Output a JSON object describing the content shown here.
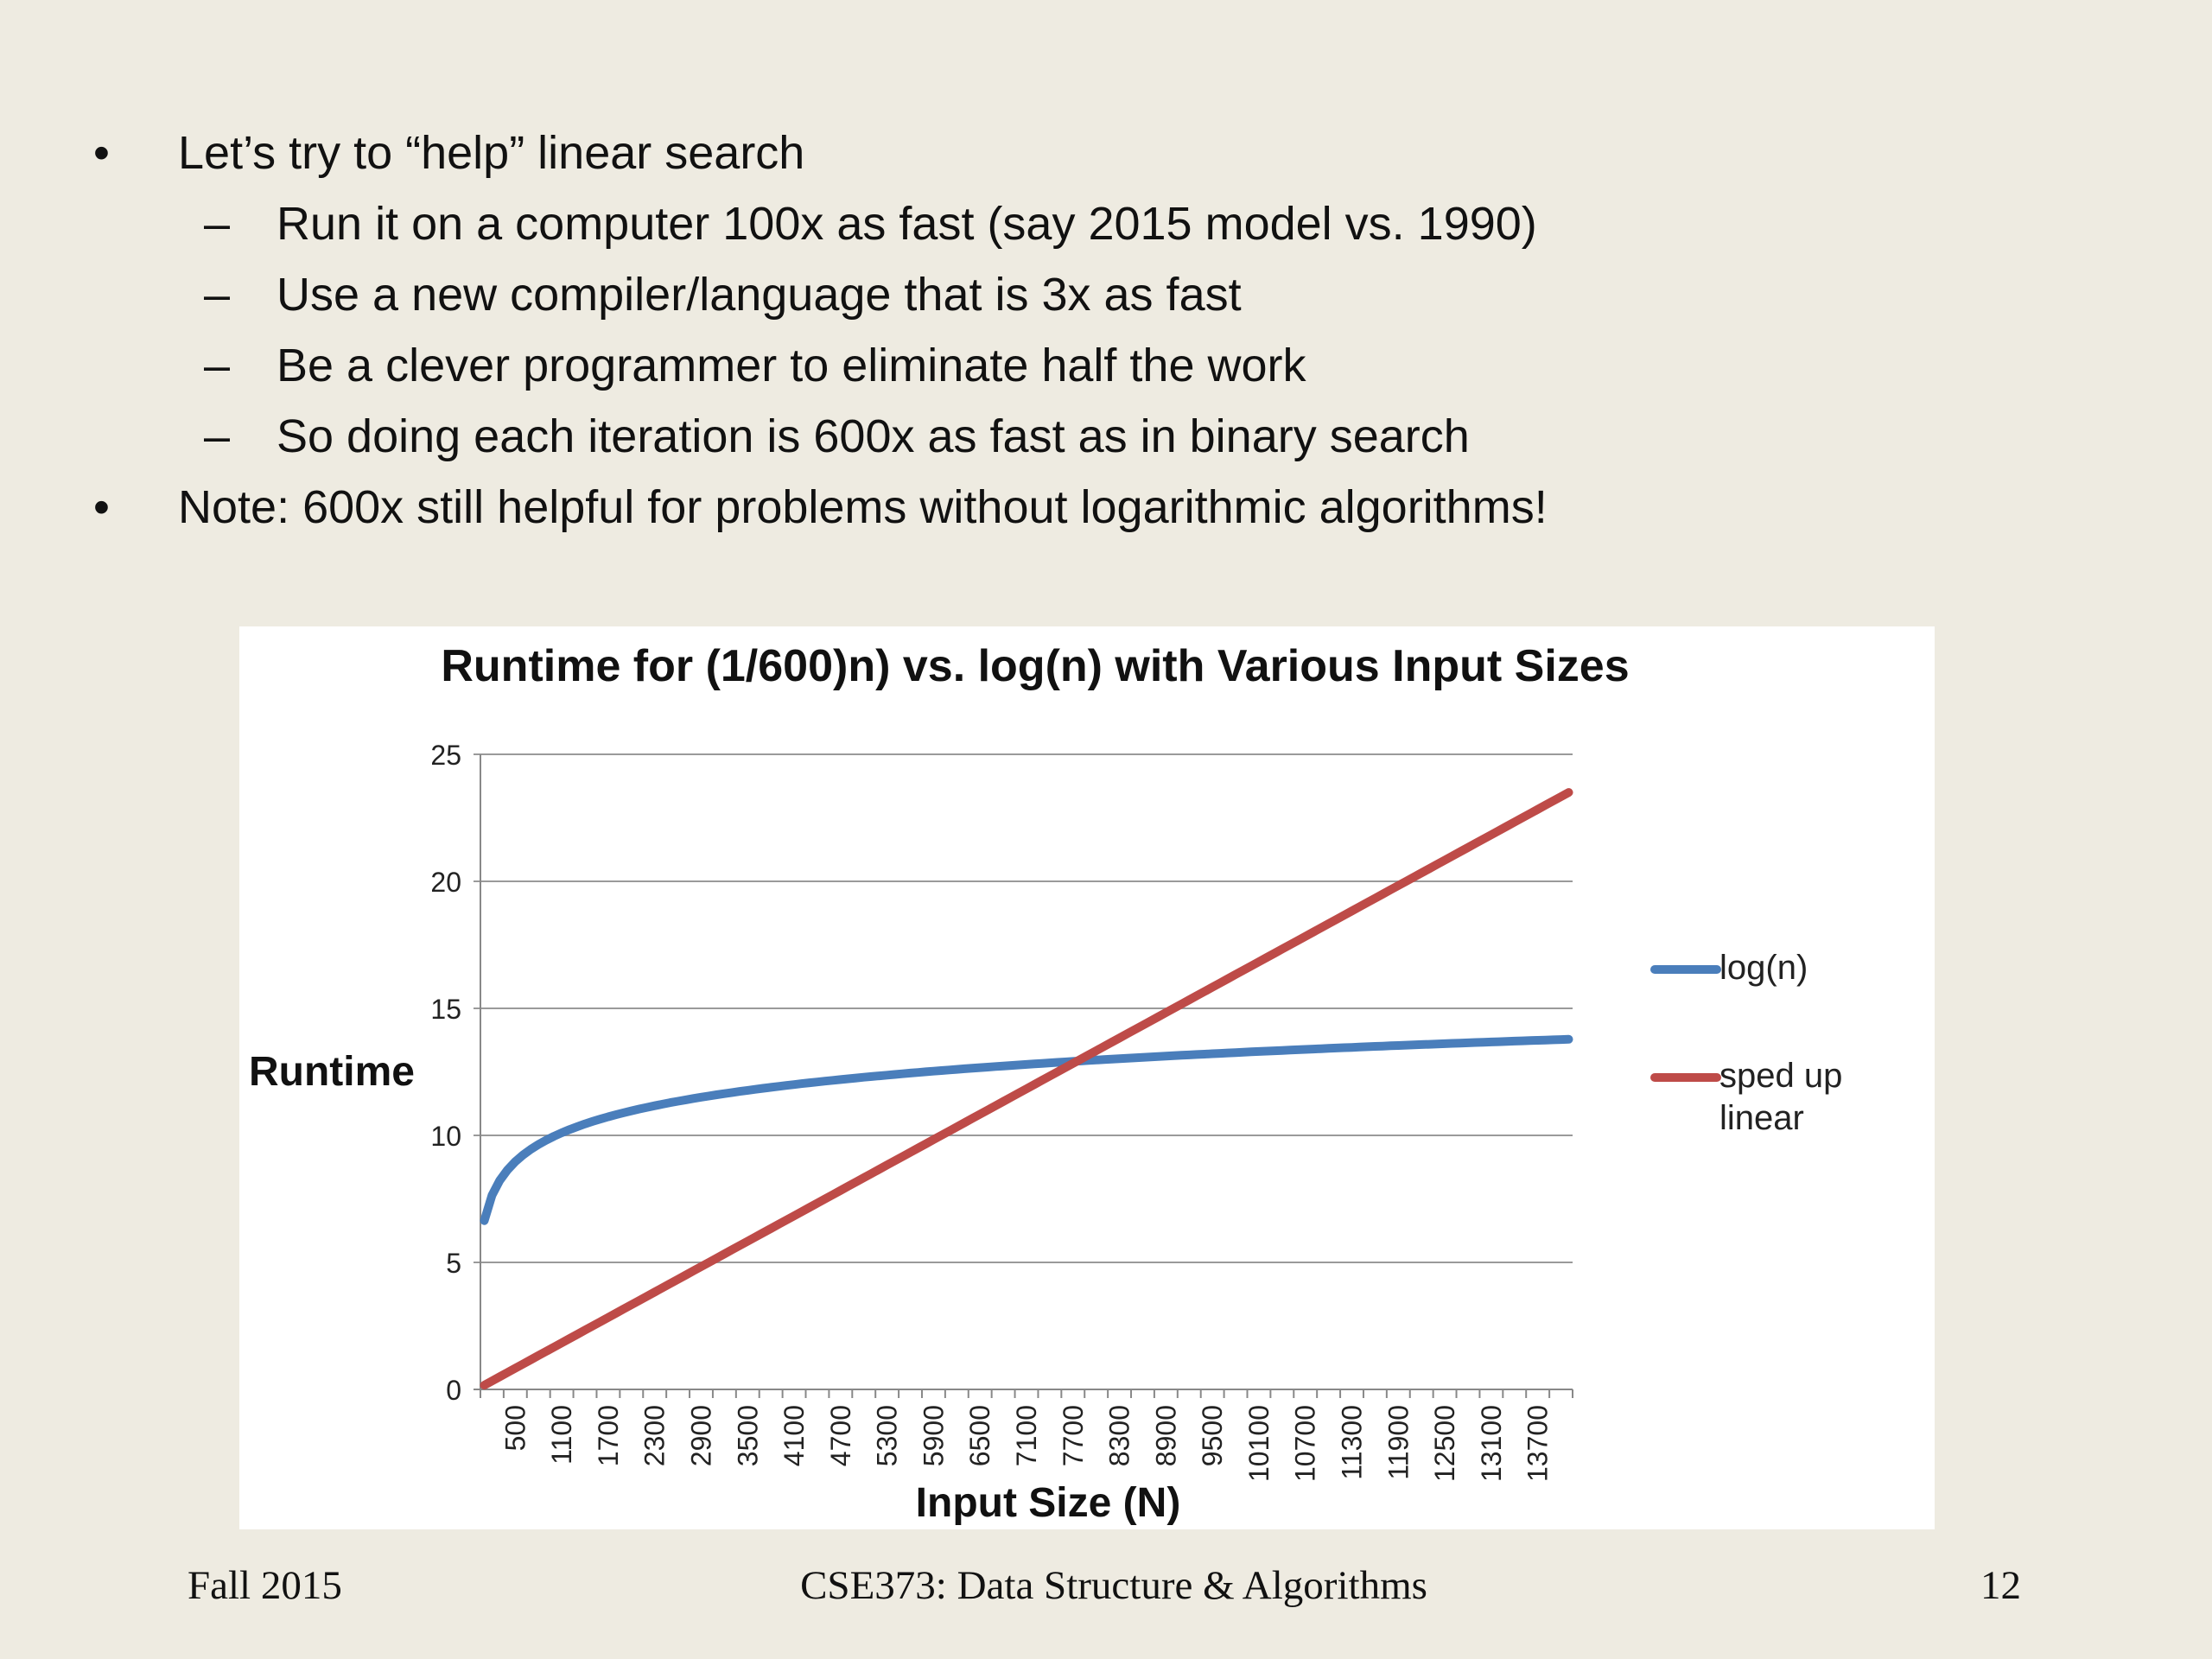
{
  "slide": {
    "bullets": [
      {
        "level": 1,
        "marker": "•",
        "text": "Let’s try to “help” linear search"
      },
      {
        "level": 2,
        "marker": "–",
        "text": "Run it on a computer 100x as fast (say 2015 model vs. 1990)"
      },
      {
        "level": 2,
        "marker": "–",
        "text": "Use a new compiler/language that is 3x as fast"
      },
      {
        "level": 2,
        "marker": "–",
        "text": "Be a clever programmer to eliminate half the work"
      },
      {
        "level": 2,
        "marker": "–",
        "text": "So doing each iteration is 600x as fast as in binary search"
      },
      {
        "level": 1,
        "marker": "•",
        "text": "Note: 600x still helpful for problems without logarithmic algorithms!"
      }
    ],
    "footer": {
      "left": "Fall 2015",
      "center": "CSE373: Data Structure & Algorithms",
      "right": "12"
    }
  },
  "chart_data": {
    "type": "line",
    "title": "Runtime for (1/600)n) vs. log(n) with Various Input Sizes",
    "xlabel": "Input Size (N)",
    "ylabel": "Runtime",
    "ylim": [
      0,
      25
    ],
    "yticks": [
      0,
      5,
      10,
      15,
      20,
      25
    ],
    "grid": true,
    "legend_position": "right",
    "x_start": 100,
    "x_end": 14100,
    "x_step": 100,
    "x_tick_labels": [
      "500",
      "1100",
      "1700",
      "2300",
      "2900",
      "3500",
      "4100",
      "4700",
      "5300",
      "5900",
      "6500",
      "7100",
      "7700",
      "8300",
      "8900",
      "9500",
      "10100",
      "10700",
      "11300",
      "11900",
      "12500",
      "13100",
      "13700"
    ],
    "series": [
      {
        "name": "log(n)",
        "formula": "log2(n)",
        "color": "#4a7ebb"
      },
      {
        "name": "sped up linear",
        "formula": "n/600",
        "color": "#be4b48"
      }
    ]
  }
}
